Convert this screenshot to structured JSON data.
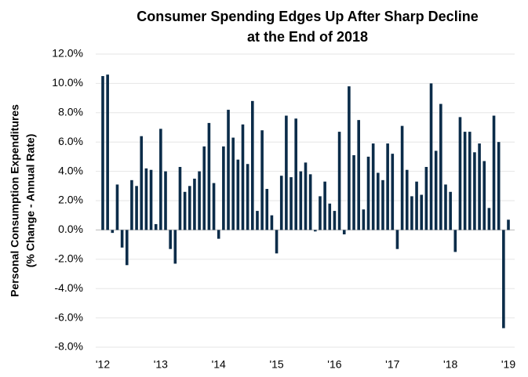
{
  "chart_data": {
    "type": "bar",
    "title": [
      "Consumer Spending Edges Up After Sharp Decline",
      "at the End of 2018"
    ],
    "y_label": [
      "Personal Consumption Expenditures",
      "(% Change - Annual Rate)"
    ],
    "color": "#0b2c49",
    "grid": true,
    "ylim": [
      -8,
      12
    ],
    "yticks": [
      {
        "value": -8,
        "label": "-8.0%"
      },
      {
        "value": -6,
        "label": "-6.0%"
      },
      {
        "value": -4,
        "label": "-4.0%"
      },
      {
        "value": -2,
        "label": "-2.0%"
      },
      {
        "value": 0,
        "label": "0.0%"
      },
      {
        "value": 2,
        "label": "2.0%"
      },
      {
        "value": 4,
        "label": "4.0%"
      },
      {
        "value": 6,
        "label": "6.0%"
      },
      {
        "value": 8,
        "label": "8.0%"
      },
      {
        "value": 10,
        "label": "10.0%"
      },
      {
        "value": 12,
        "label": "12.0%"
      }
    ],
    "categories": [
      "'12",
      null,
      null,
      null,
      null,
      null,
      null,
      null,
      null,
      null,
      null,
      null,
      "'13",
      null,
      null,
      null,
      null,
      null,
      null,
      null,
      null,
      null,
      null,
      null,
      "'14",
      null,
      null,
      null,
      null,
      null,
      null,
      null,
      null,
      null,
      null,
      null,
      "'15",
      null,
      null,
      null,
      null,
      null,
      null,
      null,
      null,
      null,
      null,
      null,
      "'16",
      null,
      null,
      null,
      null,
      null,
      null,
      null,
      null,
      null,
      null,
      null,
      "'17",
      null,
      null,
      null,
      null,
      null,
      null,
      null,
      null,
      null,
      null,
      null,
      "'18",
      null,
      null,
      null,
      null,
      null,
      null,
      null,
      null,
      null,
      null,
      null,
      "'19"
    ],
    "values": [
      10.5,
      10.6,
      -0.2,
      3.1,
      -1.2,
      -2.4,
      3.4,
      3.0,
      6.4,
      4.2,
      4.1,
      0.4,
      6.9,
      4.0,
      -1.3,
      -2.3,
      4.3,
      2.6,
      3.0,
      3.5,
      4.0,
      5.7,
      7.3,
      3.2,
      -0.6,
      5.7,
      8.2,
      6.3,
      4.8,
      7.2,
      4.5,
      8.8,
      1.3,
      6.8,
      2.8,
      1.0,
      -1.6,
      3.7,
      7.8,
      3.6,
      7.6,
      4.0,
      4.6,
      3.8,
      -0.1,
      2.3,
      3.3,
      1.8,
      1.3,
      6.7,
      -0.3,
      9.8,
      5.1,
      7.5,
      1.4,
      5.0,
      5.9,
      3.9,
      3.4,
      5.9,
      5.2,
      -1.3,
      7.1,
      4.1,
      2.3,
      3.3,
      2.4,
      4.3,
      10.0,
      5.4,
      8.6,
      3.1,
      2.6,
      -1.5,
      7.7,
      6.7,
      6.7,
      5.3,
      5.9,
      4.7,
      1.5,
      7.8,
      6.0,
      -6.7,
      0.7
    ]
  }
}
